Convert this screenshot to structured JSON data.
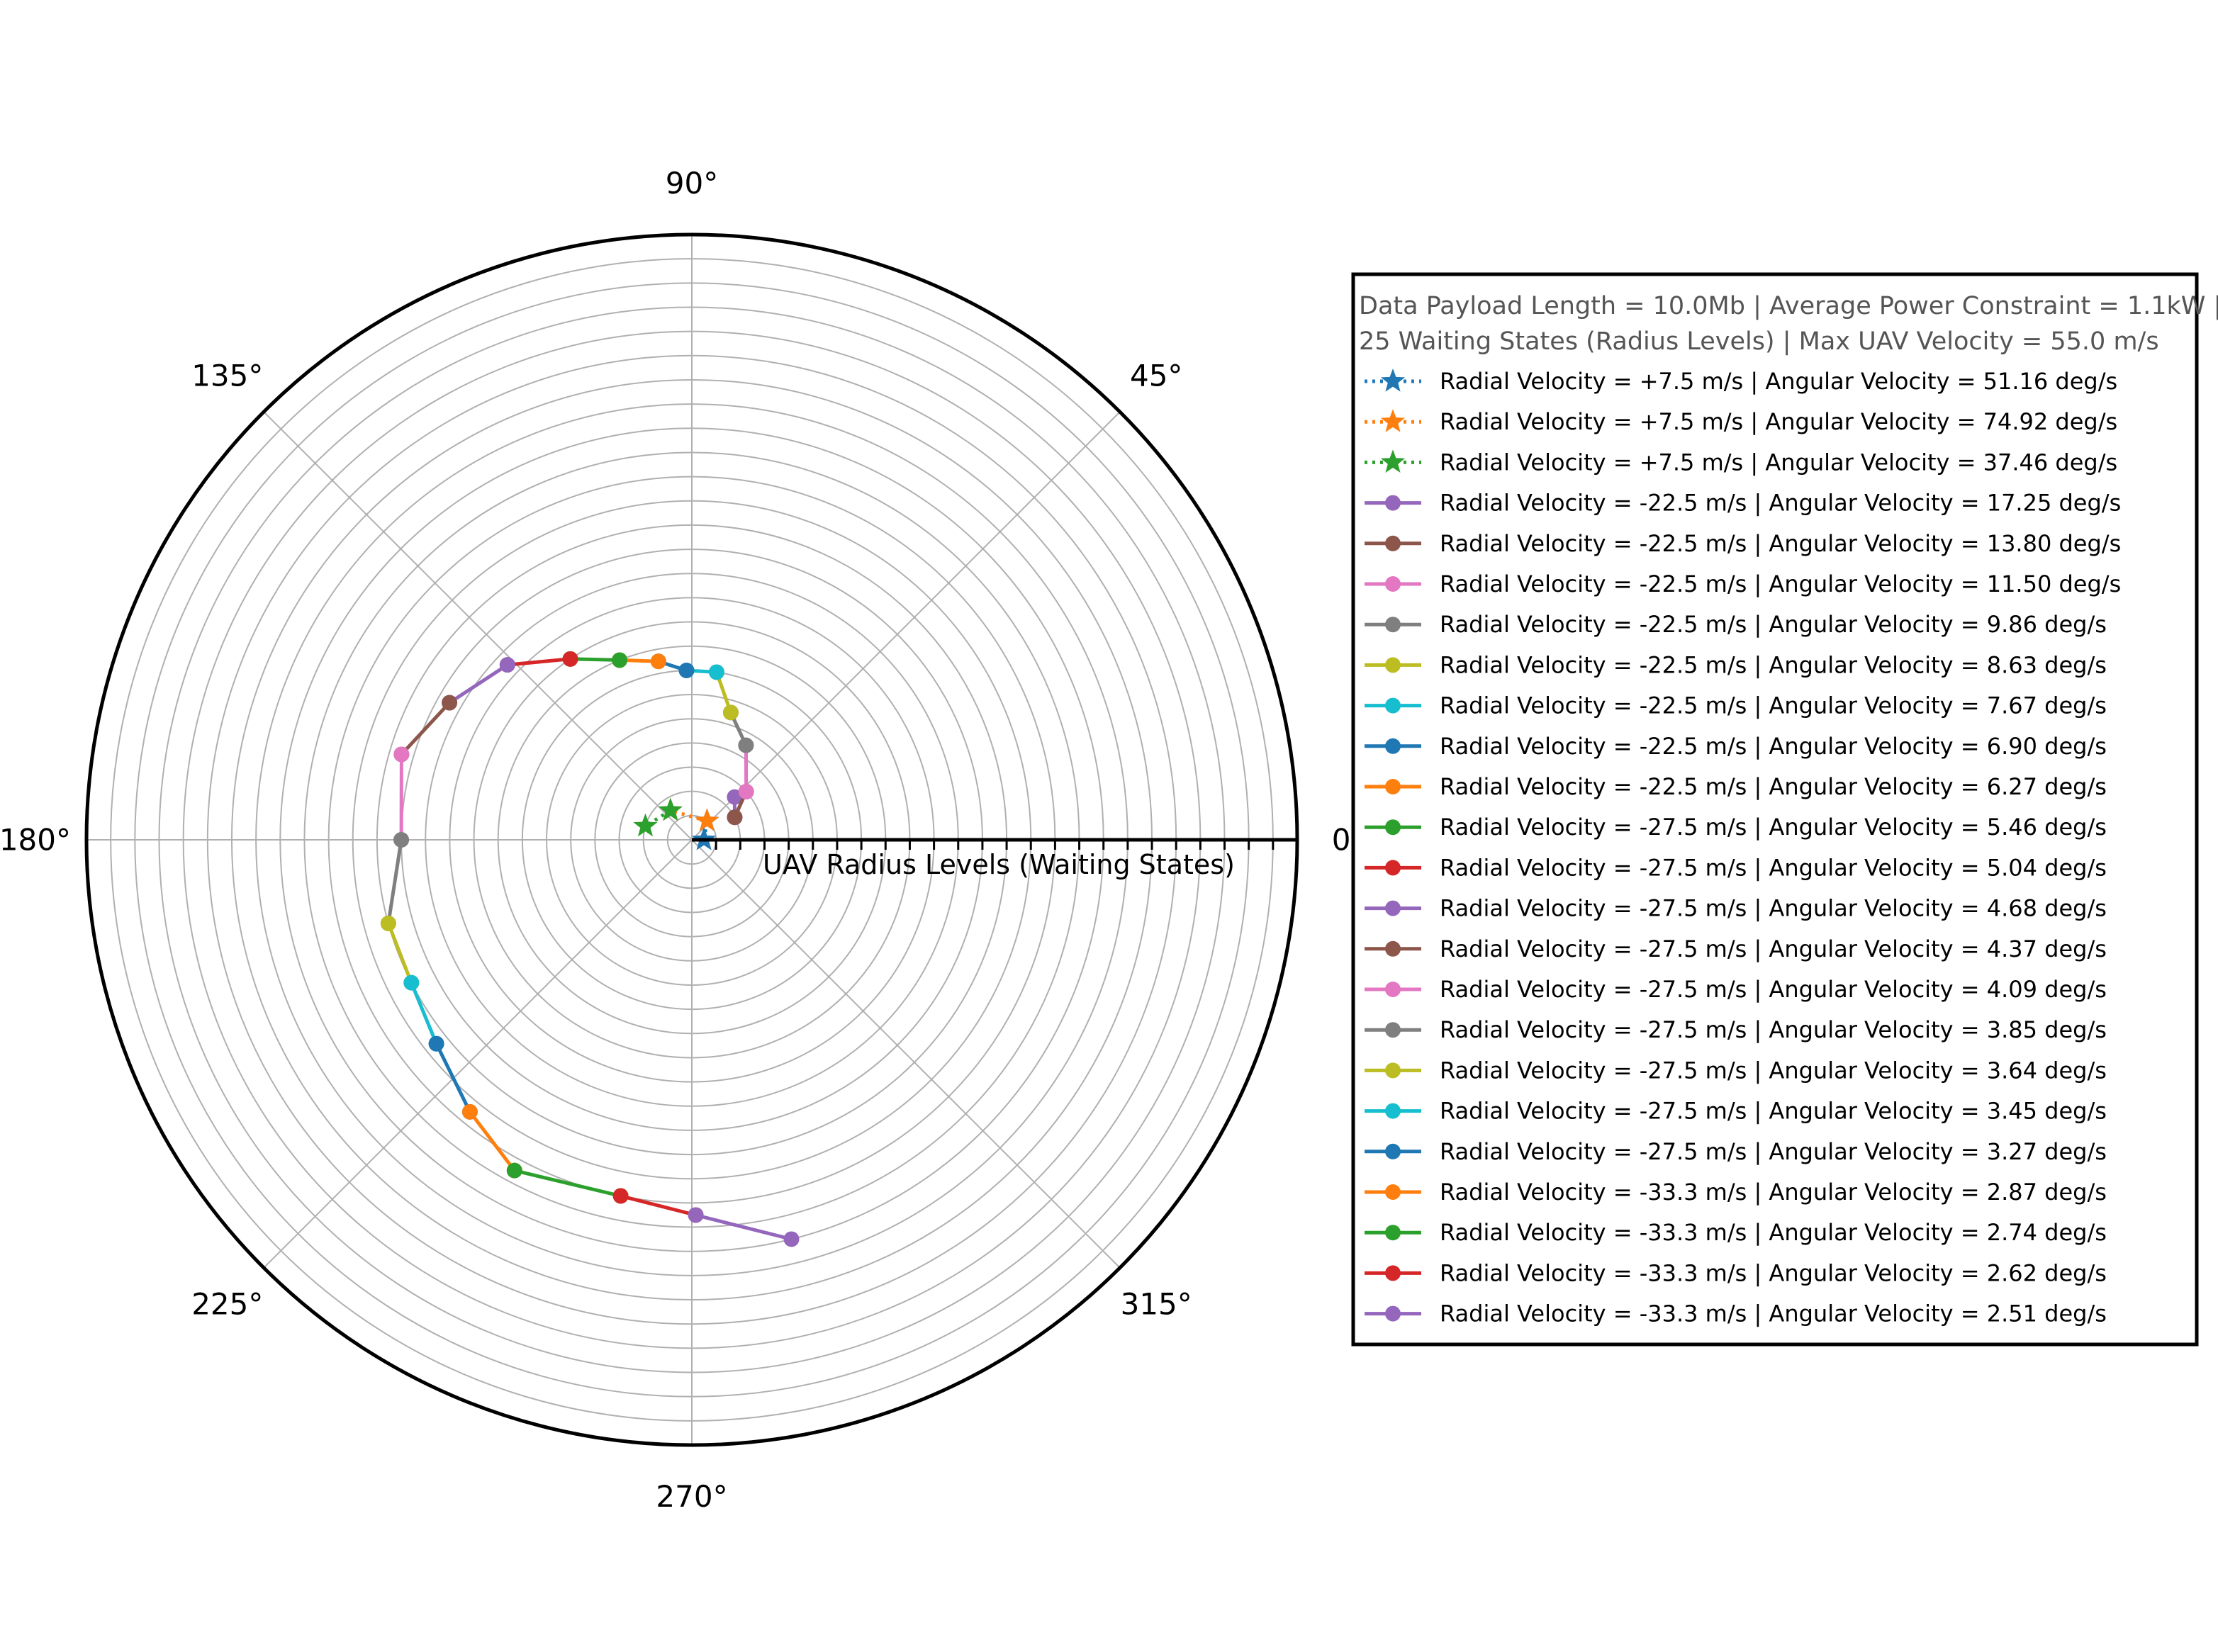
{
  "chart_data": {
    "type": "line",
    "projection": "polar",
    "radial_axis_label": "UAV Radius Levels (Waiting States)",
    "angle_ticks": [
      "0°",
      "45°",
      "90°",
      "135°",
      "180°",
      "225°",
      "270°",
      "315°"
    ],
    "rlim": [
      0,
      25
    ],
    "radial_grid_count": 25,
    "grid": true,
    "legend_position": "right",
    "legend_title_lines": [
      "Data Payload Length = 10.0Mb | Average Power Constraint = 1.1kW |",
      "25 Waiting States (Radius Levels) | Max UAV Velocity = 55.0 m/s"
    ],
    "series": [
      {
        "name": "Radial Velocity = +7.5 m/s | Angular Velocity = 51.16 deg/s",
        "color": "#1f77b4",
        "style": "dotted",
        "marker": "star",
        "points": [
          [
            0.0,
            0.5
          ],
          [
            51.2,
            1.0
          ]
        ]
      },
      {
        "name": "Radial Velocity = +7.5 m/s | Angular Velocity = 74.92 deg/s",
        "color": "#ff7f0e",
        "style": "dotted",
        "marker": "star",
        "points": [
          [
            51.2,
            1.0
          ],
          [
            126.1,
            1.5
          ]
        ]
      },
      {
        "name": "Radial Velocity = +7.5 m/s | Angular Velocity = 37.46 deg/s",
        "color": "#2ca02c",
        "style": "dotted",
        "marker": "star",
        "points": [
          [
            126.1,
            1.5
          ],
          [
            163.6,
            2.0
          ]
        ]
      },
      {
        "name": "Radial Velocity = -22.5 m/s | Angular Velocity = 17.25 deg/s",
        "color": "#9467bd",
        "style": "solid",
        "marker": "circle",
        "points": [
          [
            45.0,
            2.5
          ],
          [
            27.75,
            2.0
          ]
        ]
      },
      {
        "name": "Radial Velocity = -22.5 m/s | Angular Velocity = 13.80 deg/s",
        "color": "#8c564b",
        "style": "solid",
        "marker": "circle",
        "points": [
          [
            27.75,
            2.0
          ],
          [
            41.55,
            3.0
          ]
        ]
      },
      {
        "name": "Radial Velocity = -22.5 m/s | Angular Velocity = 11.50 deg/s",
        "color": "#e377c2",
        "style": "solid",
        "marker": "circle",
        "points": [
          [
            41.55,
            3.0
          ],
          [
            60.2,
            4.5
          ]
        ]
      },
      {
        "name": "Radial Velocity = -22.5 m/s | Angular Velocity = 9.86 deg/s",
        "color": "#7f7f7f",
        "style": "solid",
        "marker": "circle",
        "points": [
          [
            60.2,
            4.5
          ],
          [
            73.0,
            5.5
          ]
        ]
      },
      {
        "name": "Radial Velocity = -22.5 m/s | Angular Velocity = 8.63 deg/s",
        "color": "#bcbd22",
        "style": "solid",
        "marker": "circle",
        "points": [
          [
            73.0,
            5.5
          ],
          [
            81.6,
            7.0
          ]
        ]
      },
      {
        "name": "Radial Velocity = -22.5 m/s | Angular Velocity = 7.67 deg/s",
        "color": "#17becf",
        "style": "solid",
        "marker": "circle",
        "points": [
          [
            81.6,
            7.0
          ],
          [
            91.8,
            7.0
          ]
        ]
      },
      {
        "name": "Radial Velocity = -22.5 m/s | Angular Velocity = 6.90 deg/s",
        "color": "#1f77b4",
        "style": "solid",
        "marker": "circle",
        "points": [
          [
            91.8,
            7.0
          ],
          [
            100.6,
            7.5
          ]
        ]
      },
      {
        "name": "Radial Velocity = -22.5 m/s | Angular Velocity = 6.27 deg/s",
        "color": "#ff7f0e",
        "style": "solid",
        "marker": "circle",
        "points": [
          [
            100.6,
            7.5
          ],
          [
            111.9,
            8.0
          ]
        ]
      },
      {
        "name": "Radial Velocity = -27.5 m/s | Angular Velocity = 5.46 deg/s",
        "color": "#2ca02c",
        "style": "solid",
        "marker": "circle",
        "points": [
          [
            111.9,
            8.0
          ],
          [
            123.9,
            9.0
          ]
        ]
      },
      {
        "name": "Radial Velocity = -27.5 m/s | Angular Velocity = 5.04 deg/s",
        "color": "#d62728",
        "style": "solid",
        "marker": "circle",
        "points": [
          [
            123.9,
            9.0
          ],
          [
            136.5,
            10.5
          ]
        ]
      },
      {
        "name": "Radial Velocity = -27.5 m/s | Angular Velocity = 4.68 deg/s",
        "color": "#9467bd",
        "style": "solid",
        "marker": "circle",
        "points": [
          [
            136.5,
            10.5
          ],
          [
            150.5,
            11.5
          ]
        ]
      },
      {
        "name": "Radial Velocity = -27.5 m/s | Angular Velocity = 4.37 deg/s",
        "color": "#8c564b",
        "style": "solid",
        "marker": "circle",
        "points": [
          [
            150.5,
            11.5
          ],
          [
            163.6,
            12.5
          ]
        ]
      },
      {
        "name": "Radial Velocity = -27.5 m/s | Angular Velocity = 4.09 deg/s",
        "color": "#e377c2",
        "style": "solid",
        "marker": "circle",
        "points": [
          [
            163.6,
            12.5
          ],
          [
            180.0,
            12.0
          ]
        ]
      },
      {
        "name": "Radial Velocity = -27.5 m/s | Angular Velocity = 3.85 deg/s",
        "color": "#7f7f7f",
        "style": "solid",
        "marker": "circle",
        "points": [
          [
            180.0,
            12.0
          ],
          [
            195.4,
            13.0
          ]
        ]
      },
      {
        "name": "Radial Velocity = -27.5 m/s | Angular Velocity = 3.64 deg/s",
        "color": "#bcbd22",
        "style": "solid",
        "marker": "circle",
        "points": [
          [
            195.4,
            13.0
          ],
          [
            207.0,
            13.0
          ]
        ]
      },
      {
        "name": "Radial Velocity = -27.5 m/s | Angular Velocity = 3.45 deg/s",
        "color": "#17becf",
        "style": "solid",
        "marker": "circle",
        "points": [
          [
            207.0,
            13.0
          ],
          [
            218.6,
            13.5
          ]
        ]
      },
      {
        "name": "Radial Velocity = -27.5 m/s | Angular Velocity = 3.27 deg/s",
        "color": "#1f77b4",
        "style": "solid",
        "marker": "circle",
        "points": [
          [
            218.6,
            13.5
          ],
          [
            230.8,
            14.5
          ]
        ]
      },
      {
        "name": "Radial Velocity = -33.3 m/s | Angular Velocity = 2.87 deg/s",
        "color": "#ff7f0e",
        "style": "solid",
        "marker": "circle",
        "points": [
          [
            230.8,
            14.5
          ],
          [
            241.8,
            15.5
          ]
        ]
      },
      {
        "name": "Radial Velocity = -33.3 m/s | Angular Velocity = 2.74 deg/s",
        "color": "#2ca02c",
        "style": "solid",
        "marker": "circle",
        "points": [
          [
            241.8,
            15.5
          ],
          [
            258.7,
            15.0
          ]
        ]
      },
      {
        "name": "Radial Velocity = -33.3 m/s | Angular Velocity = 2.62 deg/s",
        "color": "#d62728",
        "style": "solid",
        "marker": "circle",
        "points": [
          [
            258.7,
            15.0
          ],
          [
            270.6,
            15.5
          ]
        ]
      },
      {
        "name": "Radial Velocity = -33.3 m/s | Angular Velocity = 2.51 deg/s",
        "color": "#9467bd",
        "style": "solid",
        "marker": "circle",
        "points": [
          [
            270.6,
            15.5
          ],
          [
            284.0,
            17.0
          ]
        ]
      }
    ]
  }
}
